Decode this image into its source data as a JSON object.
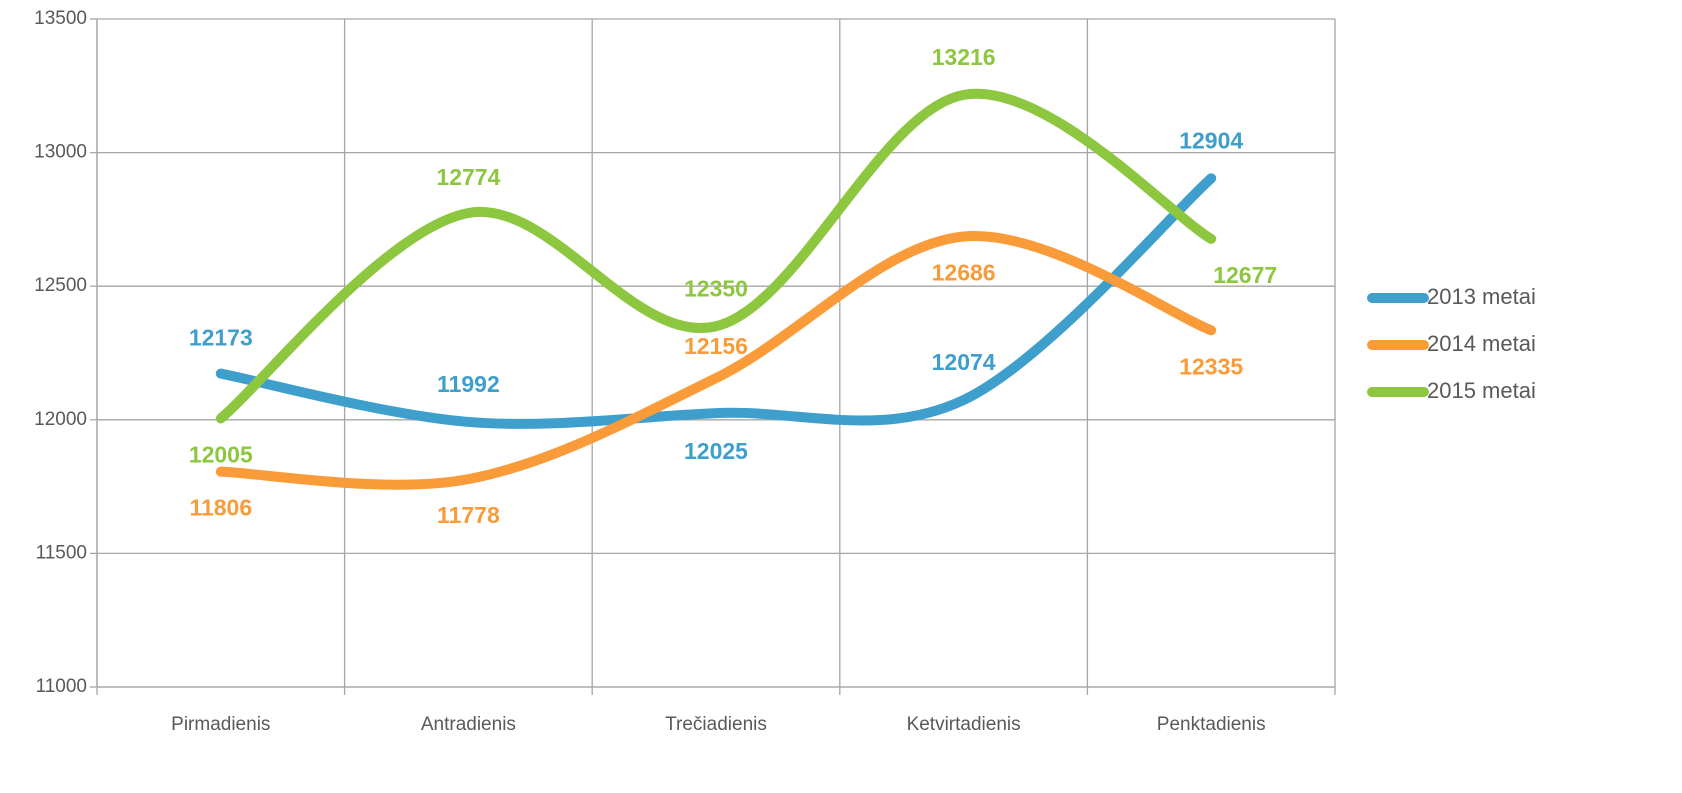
{
  "chart_data": {
    "type": "line",
    "categories": [
      "Pirmadienis",
      "Antradienis",
      "Trečiadienis",
      "Ketvirtadienis",
      "Penktadienis"
    ],
    "series": [
      {
        "name": "2013 metai",
        "color": "#3e9fcc",
        "values": [
          12173,
          11992,
          12025,
          12074,
          12904
        ]
      },
      {
        "name": "2014 metai",
        "color": "#f99b38",
        "values": [
          11806,
          11778,
          12156,
          12686,
          12335
        ]
      },
      {
        "name": "2015 metai",
        "color": "#8dc63f",
        "values": [
          12005,
          12774,
          12350,
          13216,
          12677
        ]
      }
    ],
    "ylim": [
      11000,
      13500
    ],
    "yticks": [
      11000,
      11500,
      12000,
      12500,
      13000,
      13500
    ],
    "grid": true,
    "smooth": true,
    "legend": "right"
  }
}
